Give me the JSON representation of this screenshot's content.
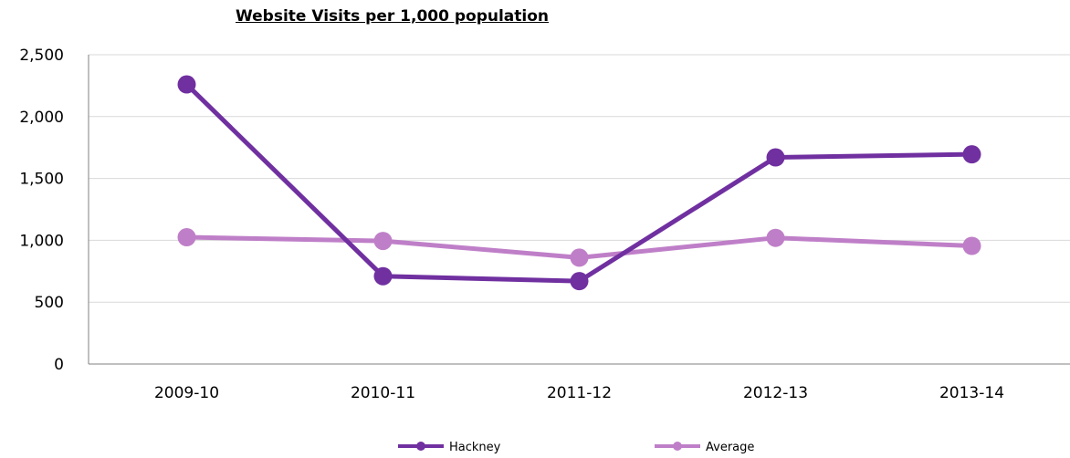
{
  "chart_data": {
    "type": "line",
    "title": "Website Visits per 1,000 population",
    "xlabel": "",
    "ylabel": "",
    "categories": [
      "2009-10",
      "2010-11",
      "2011-12",
      "2012-13",
      "2013-14"
    ],
    "yticks": [
      "0",
      "500",
      "1,000",
      "1,500",
      "2,000",
      "2,500"
    ],
    "ylim": [
      0,
      2500
    ],
    "grid": true,
    "legend_position": "bottom",
    "series": [
      {
        "name": "Hackney",
        "color": "#7030a0",
        "values": [
          2260,
          710,
          670,
          1670,
          1695
        ]
      },
      {
        "name": "Average",
        "color": "#bf7fc8",
        "values": [
          1025,
          995,
          860,
          1020,
          955
        ]
      }
    ]
  }
}
